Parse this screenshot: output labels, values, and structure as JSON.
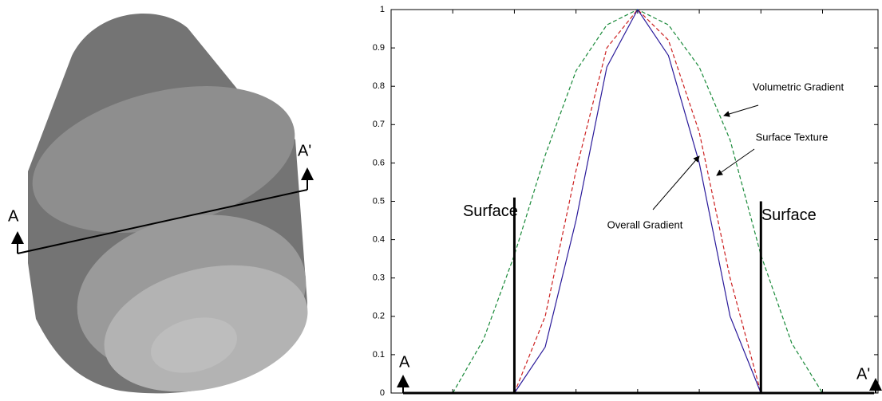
{
  "chart_data": {
    "type": "line",
    "xlim": [
      0,
      7.9
    ],
    "xticks": [
      1,
      2,
      3,
      4,
      5,
      6,
      7
    ],
    "ylim": [
      0,
      1
    ],
    "yticks": [
      0,
      0.1,
      0.2,
      0.3,
      0.4,
      0.5,
      0.6,
      0.7,
      0.8,
      0.9,
      1
    ],
    "series": [
      {
        "name": "Volumetric Gradient",
        "color": "#1a8a3a",
        "dashed": true,
        "x": [
          1,
          1.5,
          2,
          2.5,
          3,
          3.5,
          4,
          4.5,
          5,
          5.5,
          6,
          6.5,
          7
        ],
        "values": [
          0,
          0.14,
          0.36,
          0.62,
          0.84,
          0.96,
          1,
          0.96,
          0.85,
          0.66,
          0.36,
          0.13,
          0
        ]
      },
      {
        "name": "Surface Texture",
        "color": "#cc2020",
        "dashed": true,
        "x": [
          2,
          2.5,
          3,
          3.5,
          4,
          4.5,
          5,
          5.5,
          6
        ],
        "values": [
          0,
          0.2,
          0.58,
          0.9,
          1,
          0.92,
          0.68,
          0.3,
          0
        ]
      },
      {
        "name": "Overall Gradient",
        "color": "#2a1a9a",
        "dashed": false,
        "x": [
          2,
          2.5,
          3,
          3.5,
          4,
          4.5,
          5,
          5.5,
          6
        ],
        "values": [
          0,
          0.12,
          0.45,
          0.85,
          1,
          0.88,
          0.6,
          0.2,
          0
        ]
      }
    ],
    "surface_label": "Surface",
    "surface_lines": [
      {
        "x": 2,
        "height": 0.51
      },
      {
        "x": 6,
        "height": 0.5
      }
    ],
    "section": {
      "start": "A",
      "end": "A'"
    }
  }
}
